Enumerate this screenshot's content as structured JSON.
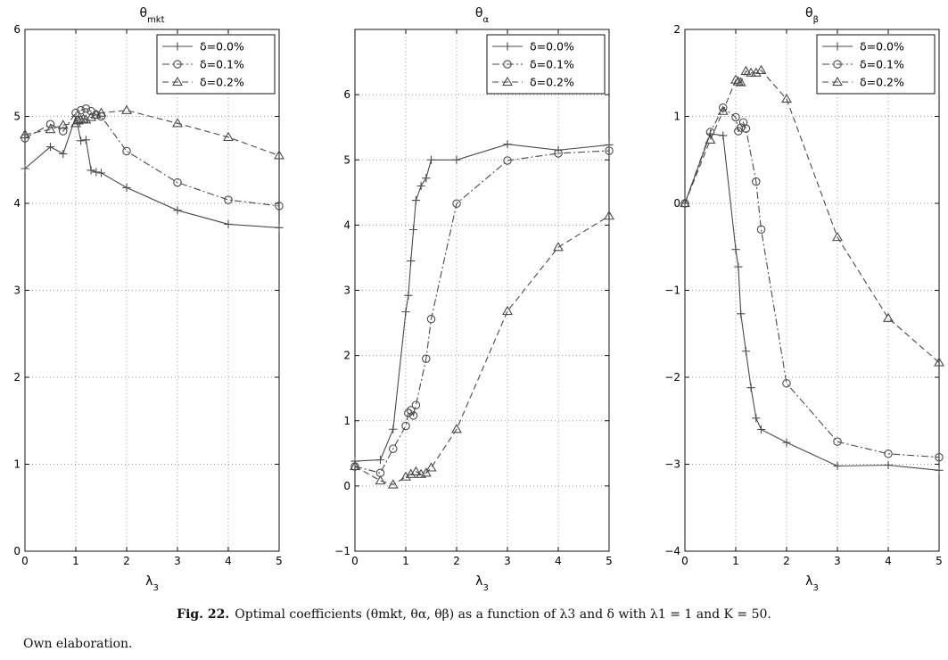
{
  "caption": {
    "label": "Fig. 22.",
    "text": "Optimal coefficients (θmkt, θα, θβ) as a function of λ3 and δ with λ1 = 1 and K = 50."
  },
  "source_note": "Own elaboration.",
  "chart_data": [
    {
      "type": "line",
      "title": "θmkt",
      "xlabel": "λ3",
      "ylabel": "",
      "xlim": [
        0,
        5
      ],
      "ylim": [
        0,
        6
      ],
      "xticks": [
        0,
        1,
        2,
        3,
        4,
        5
      ],
      "yticks": [
        0,
        1,
        2,
        3,
        4,
        5,
        6
      ],
      "grid": true,
      "legend": "top-right",
      "series": [
        {
          "name": "δ=0.0%",
          "marker": "plus",
          "dash": "solid",
          "x": [
            0,
            0.5,
            0.75,
            1.0,
            1.1,
            1.2,
            1.3,
            1.4,
            1.5,
            2,
            3,
            4,
            5
          ],
          "y": [
            4.4,
            4.65,
            4.57,
            5.0,
            4.72,
            4.73,
            4.38,
            4.36,
            4.35,
            4.18,
            3.92,
            3.76,
            3.72
          ]
        },
        {
          "name": "δ=0.1%",
          "marker": "circle",
          "dash": "dashdot",
          "x": [
            0,
            0.5,
            0.75,
            1.0,
            1.1,
            1.2,
            1.3,
            1.4,
            1.5,
            2,
            3,
            4,
            5
          ],
          "y": [
            4.75,
            4.91,
            4.83,
            5.04,
            5.07,
            5.09,
            5.06,
            5.02,
            5.0,
            4.6,
            4.24,
            4.04,
            3.97
          ]
        },
        {
          "name": "δ=0.2%",
          "marker": "triangle",
          "dash": "dashed",
          "x": [
            0,
            0.5,
            0.75,
            1.0,
            1.05,
            1.1,
            1.15,
            1.2,
            1.3,
            1.4,
            1.5,
            2,
            3,
            4,
            5
          ],
          "y": [
            4.79,
            4.85,
            4.9,
            4.92,
            4.95,
            4.96,
            4.97,
            4.96,
            4.99,
            5.02,
            5.04,
            5.07,
            4.92,
            4.76,
            4.55
          ]
        }
      ]
    },
    {
      "type": "line",
      "title": "θα",
      "xlabel": "λ3",
      "ylabel": "",
      "xlim": [
        0,
        5
      ],
      "ylim": [
        -1,
        7
      ],
      "xticks": [
        0,
        1,
        2,
        3,
        4,
        5
      ],
      "yticks": [
        -1,
        0,
        1,
        2,
        3,
        4,
        5,
        6
      ],
      "grid": true,
      "legend": "top-right",
      "series": [
        {
          "name": "δ=0.0%",
          "marker": "plus",
          "dash": "solid",
          "x": [
            0,
            0.5,
            0.75,
            1.0,
            1.05,
            1.1,
            1.15,
            1.2,
            1.3,
            1.4,
            1.5,
            2,
            3,
            4,
            5
          ],
          "y": [
            0.38,
            0.4,
            0.87,
            2.67,
            2.92,
            3.45,
            3.93,
            4.38,
            4.6,
            4.72,
            5.0,
            5.0,
            5.24,
            5.15,
            5.23
          ]
        },
        {
          "name": "δ=0.1%",
          "marker": "circle",
          "dash": "dashdot",
          "x": [
            0,
            0.5,
            0.75,
            1.0,
            1.05,
            1.1,
            1.15,
            1.2,
            1.4,
            1.5,
            2,
            3,
            4,
            5
          ],
          "y": [
            0.3,
            0.2,
            0.57,
            0.92,
            1.12,
            1.16,
            1.08,
            1.24,
            1.95,
            2.56,
            4.33,
            4.99,
            5.1,
            5.14
          ]
        },
        {
          "name": "δ=0.2%",
          "marker": "triangle",
          "dash": "dashed",
          "x": [
            0,
            0.5,
            0.75,
            1.0,
            1.1,
            1.2,
            1.3,
            1.4,
            1.5,
            2,
            3,
            4,
            5
          ],
          "y": [
            0.3,
            0.08,
            0.02,
            0.14,
            0.18,
            0.22,
            0.18,
            0.2,
            0.28,
            0.87,
            2.68,
            3.66,
            4.14
          ]
        }
      ]
    },
    {
      "type": "line",
      "title": "θβ",
      "xlabel": "λ3",
      "ylabel": "",
      "xlim": [
        0,
        5
      ],
      "ylim": [
        -4,
        2
      ],
      "xticks": [
        0,
        1,
        2,
        3,
        4,
        5
      ],
      "yticks": [
        -4,
        -3,
        -2,
        -1,
        0,
        1,
        2
      ],
      "grid": true,
      "legend": "top-right",
      "series": [
        {
          "name": "δ=0.0%",
          "marker": "plus",
          "dash": "solid",
          "x": [
            0,
            0.5,
            0.75,
            1.0,
            1.05,
            1.1,
            1.2,
            1.3,
            1.4,
            1.5,
            2,
            3,
            4,
            5
          ],
          "y": [
            0,
            0.8,
            0.78,
            -0.53,
            -0.73,
            -1.27,
            -1.7,
            -2.12,
            -2.47,
            -2.6,
            -2.75,
            -3.02,
            -3.01,
            -3.07
          ]
        },
        {
          "name": "δ=0.1%",
          "marker": "circle",
          "dash": "dashdot",
          "x": [
            0,
            0.5,
            0.75,
            1.0,
            1.05,
            1.1,
            1.15,
            1.2,
            1.4,
            1.5,
            2,
            3,
            4,
            5
          ],
          "y": [
            0,
            0.82,
            1.1,
            0.99,
            0.83,
            0.87,
            0.93,
            0.86,
            0.25,
            -0.3,
            -2.07,
            -2.74,
            -2.88,
            -2.92
          ]
        },
        {
          "name": "δ=0.2%",
          "marker": "triangle",
          "dash": "dashed",
          "x": [
            0,
            0.5,
            0.75,
            1.0,
            1.05,
            1.1,
            1.2,
            1.3,
            1.4,
            1.5,
            2,
            3,
            4,
            5
          ],
          "y": [
            0,
            0.73,
            1.06,
            1.42,
            1.4,
            1.39,
            1.52,
            1.5,
            1.5,
            1.53,
            1.2,
            -0.39,
            -1.32,
            -1.83
          ]
        }
      ]
    }
  ]
}
